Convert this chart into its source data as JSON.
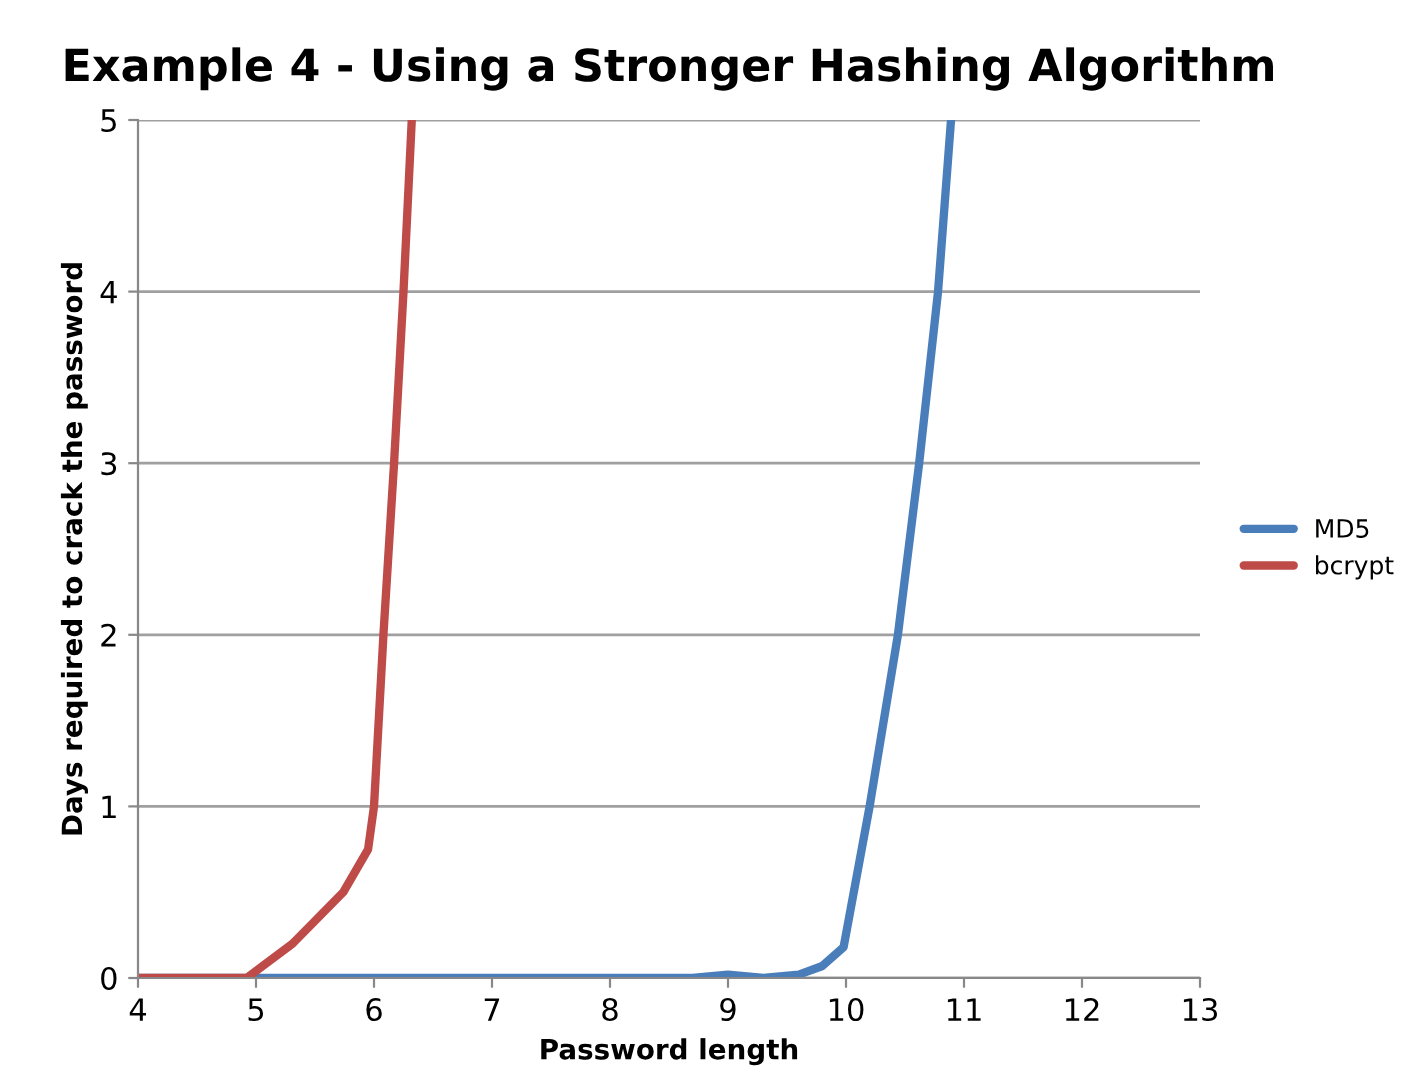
{
  "chart_data": {
    "type": "line",
    "title": "Example 4 - Using a Stronger Hashing Algorithm",
    "xlabel": "Password length",
    "ylabel": "Days required to crack the password",
    "series": [
      {
        "name": "MD5",
        "color": "#4a7ebb",
        "x": [
          4,
          5,
          6,
          7,
          8,
          8.7,
          9,
          9.3,
          9.6,
          9.8,
          9.98,
          10.2,
          10.44,
          10.62,
          10.78,
          10.89
        ],
        "values": [
          0,
          0,
          0,
          0,
          0,
          0,
          0.02,
          0,
          0.02,
          0.07,
          0.18,
          1,
          2,
          3,
          4,
          5
        ]
      },
      {
        "name": "bcrypt",
        "color": "#be4b48",
        "x": [
          4,
          4.5,
          4.92,
          5.31,
          5.74,
          5.95,
          6.0,
          6.08,
          6.17,
          6.25,
          6.32
        ],
        "values": [
          0,
          0,
          0,
          0.2,
          0.5,
          0.75,
          1,
          2,
          3,
          4,
          5
        ]
      }
    ],
    "xlim": [
      4,
      13
    ],
    "xticks": [
      4,
      5,
      6,
      7,
      8,
      9,
      10,
      11,
      12,
      13
    ],
    "ylim": [
      0,
      5
    ],
    "yticks": [
      0,
      1,
      2,
      3,
      4,
      5
    ],
    "grid": "y",
    "legend": "right",
    "marker": "none",
    "line_style": "solid"
  }
}
